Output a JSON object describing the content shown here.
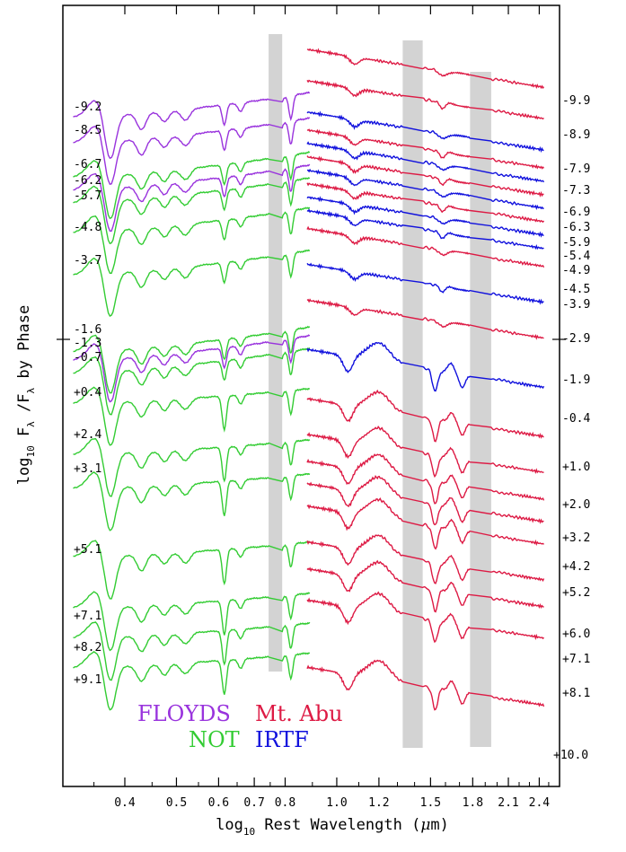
{
  "chart_data": {
    "type": "line",
    "title": "",
    "xlabel": {
      "prefix": "log",
      "sub": "10",
      "rest": " Rest Wavelength (",
      "mu": "μ",
      "unit": "m)"
    },
    "ylabel": {
      "prefix": "log",
      "sub": "10",
      "f1": " F",
      "lam1": "λ",
      "slash": " /F",
      "lam2": "λ",
      "rest": "  by Phase"
    },
    "x_scale": "log10",
    "xlim_um": [
      0.306,
      2.62
    ],
    "x_ticks": [
      "0.4",
      "0.5",
      "0.6",
      "0.7",
      "0.8",
      "1.0",
      "1.2",
      "1.5",
      "1.8",
      "2.1",
      "2.4"
    ],
    "x_tick_values": [
      0.4,
      0.5,
      0.6,
      0.7,
      0.8,
      1.0,
      1.2,
      1.5,
      1.8,
      2.1,
      2.4
    ],
    "telluric_bands_um": [
      [
        0.745,
        0.79
      ],
      [
        1.33,
        1.45
      ],
      [
        1.78,
        1.95
      ]
    ],
    "colors": {
      "FLOYDS": "#9933dd",
      "NOT": "#33cc33",
      "Mt. Abu": "#dd1a44",
      "IRTF": "#1111dd",
      "band": "#d3d3d3"
    },
    "legend": [
      {
        "name": "FLOYDS",
        "color": "#9933dd"
      },
      {
        "name": "Mt. Abu",
        "color": "#dd1a44"
      },
      {
        "name": "NOT",
        "color": "#33cc33"
      },
      {
        "name": "IRTF",
        "color": "#1111dd"
      }
    ],
    "optical_phases": [
      "-9.2",
      "-8.5",
      "-6.7",
      "-6.2",
      "-5.7",
      "-4.8",
      "-3.7",
      "-1.6",
      "-1.3",
      "-0.7",
      "+0.4",
      "+2.4",
      "+3.1",
      "+5.1",
      "+7.1",
      "+8.2",
      "+9.1"
    ],
    "nir_phases": [
      "-9.9",
      "-8.9",
      "-7.9",
      "-7.3",
      "-6.9",
      "-6.3",
      "-5.9",
      "-5.4",
      "-4.9",
      "-4.5",
      "-3.9",
      "-2.9",
      "-1.9",
      "-0.4",
      "+1.0",
      "+2.0",
      "+3.2",
      "+4.2",
      "+5.2",
      "+6.0",
      "+7.1",
      "+8.1",
      "+10.0"
    ],
    "optical_series": [
      {
        "phase": "-9.2",
        "instrument": "FLOYDS",
        "offset": 0.0
      },
      {
        "phase": "-8.5",
        "instrument": "FLOYDS",
        "offset": 0.3
      },
      {
        "phase": "-6.7",
        "instrument": "NOT",
        "offset": 0.7
      },
      {
        "phase": "-6.2",
        "instrument": "FLOYDS",
        "offset": 0.85
      },
      {
        "phase": "-5.7",
        "instrument": "NOT",
        "offset": 1.0
      },
      {
        "phase": "-4.8",
        "instrument": "NOT",
        "offset": 1.35
      },
      {
        "phase": "-3.7",
        "instrument": "NOT",
        "offset": 1.85
      },
      {
        "phase": "-1.6",
        "instrument": "NOT",
        "offset": 2.75
      },
      {
        "phase": "-1.3",
        "instrument": "FLOYDS",
        "offset": 2.85
      },
      {
        "phase": "-0.7",
        "instrument": "NOT",
        "offset": 3.0
      },
      {
        "phase": "+0.4",
        "instrument": "NOT",
        "offset": 3.4
      },
      {
        "phase": "+2.4",
        "instrument": "NOT",
        "offset": 4.0
      },
      {
        "phase": "+3.1",
        "instrument": "NOT",
        "offset": 4.4
      },
      {
        "phase": "+5.1",
        "instrument": "NOT",
        "offset": 5.2
      },
      {
        "phase": "+7.1",
        "instrument": "NOT",
        "offset": 5.8
      },
      {
        "phase": "+8.2",
        "instrument": "NOT",
        "offset": 6.15
      },
      {
        "phase": "+9.1",
        "instrument": "NOT",
        "offset": 6.5
      }
    ],
    "nir_series": [
      {
        "phase": "-9.9",
        "instrument": "Mt. Abu",
        "offset": 0.0
      },
      {
        "phase": "-8.9",
        "instrument": "Mt. Abu",
        "offset": 0.35
      },
      {
        "phase": "-7.9",
        "instrument": "IRTF",
        "offset": 0.7
      },
      {
        "phase": "-7.3",
        "instrument": "Mt. Abu",
        "offset": 0.9
      },
      {
        "phase": "-6.9",
        "instrument": "IRTF",
        "offset": 1.05
      },
      {
        "phase": "-6.3",
        "instrument": "Mt. Abu",
        "offset": 1.2
      },
      {
        "phase": "-5.9",
        "instrument": "IRTF",
        "offset": 1.35
      },
      {
        "phase": "-5.4",
        "instrument": "Mt. Abu",
        "offset": 1.5
      },
      {
        "phase": "-4.9",
        "instrument": "IRTF",
        "offset": 1.65
      },
      {
        "phase": "-4.5",
        "instrument": "IRTF",
        "offset": 1.8
      },
      {
        "phase": "-3.9",
        "instrument": "Mt. Abu",
        "offset": 2.0
      },
      {
        "phase": "-2.9",
        "instrument": "IRTF",
        "offset": 2.4
      },
      {
        "phase": "-1.9",
        "instrument": "Mt. Abu",
        "offset": 2.8
      },
      {
        "phase": "-0.4",
        "instrument": "IRTF",
        "offset": 3.35
      },
      {
        "phase": "+1.0",
        "instrument": "Mt. Abu",
        "offset": 3.9
      },
      {
        "phase": "+2.0",
        "instrument": "Mt. Abu",
        "offset": 4.3
      },
      {
        "phase": "+3.2",
        "instrument": "Mt. Abu",
        "offset": 4.6
      },
      {
        "phase": "+4.2",
        "instrument": "Mt. Abu",
        "offset": 4.85
      },
      {
        "phase": "+5.2",
        "instrument": "Mt. Abu",
        "offset": 5.1
      },
      {
        "phase": "+6.0",
        "instrument": "Mt. Abu",
        "offset": 5.5
      },
      {
        "phase": "+7.1",
        "instrument": "Mt. Abu",
        "offset": 5.8
      },
      {
        "phase": "+8.1",
        "instrument": "Mt. Abu",
        "offset": 6.15
      },
      {
        "phase": "+10.0",
        "instrument": "Mt. Abu",
        "offset": 6.9
      }
    ]
  }
}
